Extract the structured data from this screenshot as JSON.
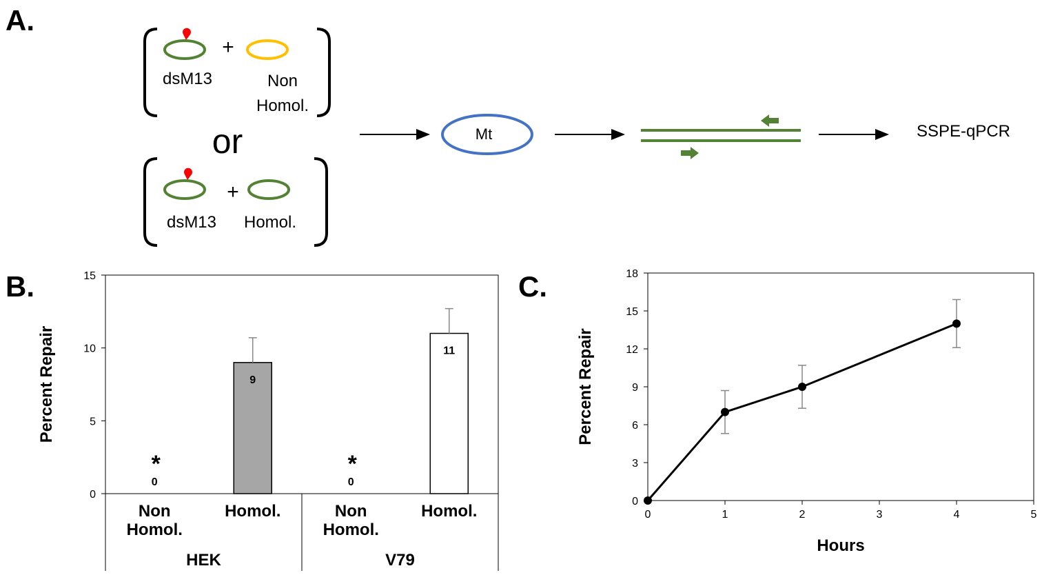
{
  "diagram": {
    "panel_label": "A.",
    "top_pair": {
      "plasmid_label": "dsM13",
      "plus": "+",
      "partner_label": "Non Homol."
    },
    "connector": "or",
    "bottom_pair": {
      "plasmid_label": "dsM13",
      "plus": "+",
      "partner_label": "Homol."
    },
    "cell": "Mt",
    "readout": "SSPE-qPCR"
  },
  "chart_data": [
    {
      "type": "bar",
      "panel_label": "B.",
      "ylabel": "Percent Repair",
      "categories": [
        "Non Homol.",
        "Homol.",
        "Non Homol.",
        "Homol."
      ],
      "groups": [
        "HEK",
        "V79"
      ],
      "values": [
        0,
        9,
        0,
        11
      ],
      "errors": [
        null,
        1.7,
        null,
        1.7
      ],
      "colors": [
        "#a6a6a6",
        "#a6a6a6",
        "#ffffff",
        "#ffffff"
      ],
      "annotations": [
        "*",
        null,
        "*",
        null
      ],
      "ylim": [
        0,
        15
      ],
      "yticks": [
        0,
        5,
        10,
        15
      ]
    },
    {
      "type": "line",
      "panel_label": "C.",
      "xlabel": "Hours",
      "ylabel": "Percent Repair",
      "x": [
        0,
        1,
        2,
        4
      ],
      "values": [
        0,
        7,
        9,
        14
      ],
      "errors": [
        null,
        1.7,
        1.7,
        1.9
      ],
      "color": "#000000",
      "xlim": [
        0,
        5
      ],
      "xticks": [
        0,
        1,
        2,
        3,
        4,
        5
      ],
      "ylim": [
        0,
        18
      ],
      "yticks": [
        0,
        3,
        6,
        9,
        12,
        15,
        18
      ]
    }
  ]
}
